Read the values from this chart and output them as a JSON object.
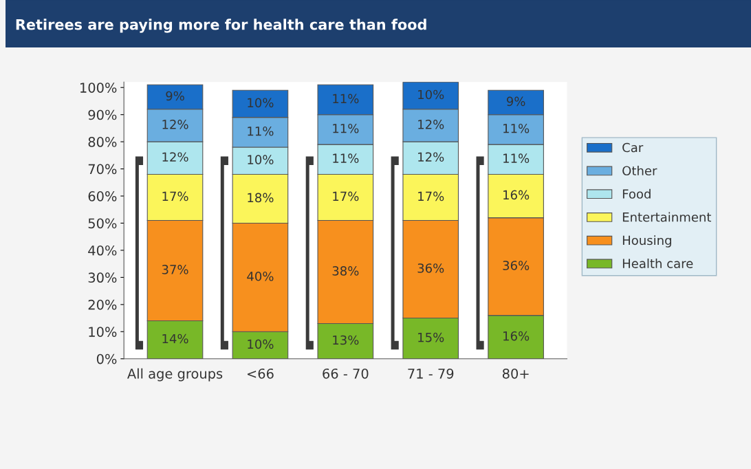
{
  "chart_data": {
    "type": "bar",
    "stacked": true,
    "title": "Retirees are paying more for health care than food",
    "categories": [
      "All age groups",
      "<66",
      "66 - 70",
      "71 - 79",
      "80+"
    ],
    "series": [
      {
        "name": "Health care",
        "color": "#78b828",
        "values": [
          14,
          10,
          13,
          15,
          16
        ],
        "value_labels": [
          "14%",
          "10%",
          "13%",
          "15%",
          "16%"
        ]
      },
      {
        "name": "Housing",
        "color": "#f7901e",
        "values": [
          37,
          40,
          38,
          36,
          36
        ],
        "value_labels": [
          "37%",
          "40%",
          "38%",
          "36%",
          "36%"
        ]
      },
      {
        "name": "Entertainment",
        "color": "#fbf55a",
        "values": [
          17,
          18,
          17,
          17,
          16
        ],
        "value_labels": [
          "17%",
          "18%",
          "17%",
          "17%",
          "16%"
        ]
      },
      {
        "name": "Food",
        "color": "#aee6ee",
        "values": [
          12,
          10,
          11,
          12,
          11
        ],
        "value_labels": [
          "12%",
          "10%",
          "11%",
          "12%",
          "11%"
        ]
      },
      {
        "name": "Other",
        "color": "#6aaee0",
        "values": [
          12,
          11,
          11,
          12,
          11
        ],
        "value_labels": [
          "12%",
          "11%",
          "11%",
          "12%",
          "11%"
        ]
      },
      {
        "name": "Car",
        "color": "#1a6fc9",
        "values": [
          9,
          10,
          11,
          10,
          9
        ],
        "value_labels": [
          "9%",
          "10%",
          "11%",
          "10%",
          "9%"
        ]
      }
    ],
    "ylim": [
      0,
      102
    ],
    "yticks": [
      {
        "value": 0,
        "label": "0%"
      },
      {
        "value": 10,
        "label": "10%"
      },
      {
        "value": 20,
        "label": "20%"
      },
      {
        "value": 30,
        "label": "30%"
      },
      {
        "value": 40,
        "label": "40%"
      },
      {
        "value": 50,
        "label": "50%"
      },
      {
        "value": 60,
        "label": "60%"
      },
      {
        "value": 70,
        "label": "70%"
      },
      {
        "value": 80,
        "label": "80%"
      },
      {
        "value": 90,
        "label": "90%"
      },
      {
        "value": 100,
        "label": "100%"
      }
    ],
    "grid": false,
    "legend": "right"
  }
}
